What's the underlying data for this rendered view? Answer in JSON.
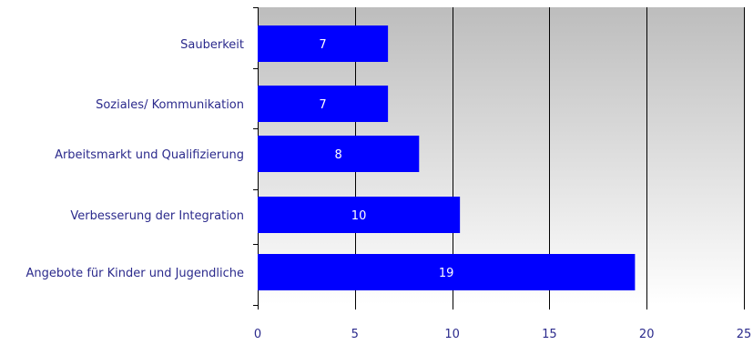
{
  "chart_data": {
    "type": "bar",
    "orientation": "horizontal",
    "categories": [
      "Sauberkeit",
      "Soziales/ Kommunikation",
      "Arbeitsmarkt und Qualifizierung",
      "Verbesserung der Integration",
      "Angebote für Kinder und Jugendliche"
    ],
    "values": [
      6.7,
      6.7,
      8.3,
      10.4,
      19.4
    ],
    "data_labels": [
      "7",
      "7",
      "8",
      "10",
      "19"
    ],
    "x_ticks": [
      "0",
      "5",
      "10",
      "15",
      "20",
      "25"
    ],
    "xlim": [
      0,
      25
    ],
    "title": "",
    "xlabel": "",
    "ylabel": "",
    "grid": true,
    "legend": "none",
    "colors": {
      "bar": "#0000ff",
      "plot_background_top": "#bdbdbd",
      "plot_background_bottom": "#ffffff",
      "gridline": "#000000",
      "label_text": "#2b2a8c",
      "bar_label_text": "#ffffff"
    }
  }
}
